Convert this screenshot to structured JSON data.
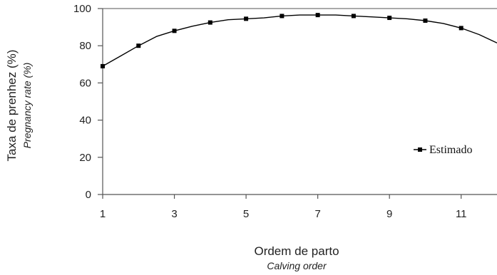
{
  "chart_data": {
    "type": "line",
    "title": "",
    "xlabel": "Ordem de parto",
    "xlabel_sub": "Calving order",
    "ylabel": "Taxa de prenhez (%)",
    "ylabel_sub": "Pregnancy rate (%)",
    "xlim": [
      1,
      12
    ],
    "ylim": [
      0,
      100
    ],
    "x_ticks": [
      1,
      3,
      5,
      7,
      9,
      11
    ],
    "x_tick_labels": [
      "1",
      "3",
      "5",
      "7",
      "9",
      "11"
    ],
    "y_ticks": [
      0,
      20,
      40,
      60,
      80,
      100
    ],
    "y_tick_labels": [
      "0",
      "20",
      "40",
      "60",
      "80",
      "100"
    ],
    "grid": false,
    "legend_position": "right",
    "series": [
      {
        "name": "Estimado",
        "color": "#000000",
        "marker": "square",
        "x": [
          1,
          2,
          3,
          4,
          5,
          6,
          7,
          8,
          9,
          10,
          11
        ],
        "y": [
          69,
          80,
          88,
          92.5,
          94.5,
          96,
          96.5,
          96,
          95,
          93.5,
          89.5
        ],
        "curve_x": [
          1,
          1.5,
          2,
          2.5,
          3,
          3.5,
          4,
          4.5,
          5,
          5.5,
          6,
          6.5,
          7,
          7.5,
          8,
          8.5,
          9,
          9.5,
          10,
          10.5,
          11,
          11.5,
          12
        ],
        "curve_y": [
          69,
          74.5,
          80,
          85,
          88,
          90.5,
          92.5,
          94,
          94.5,
          95,
          96,
          96.5,
          96.5,
          96.5,
          96,
          95.5,
          95,
          94.5,
          93.5,
          92,
          89.5,
          86,
          81.5
        ]
      }
    ]
  }
}
